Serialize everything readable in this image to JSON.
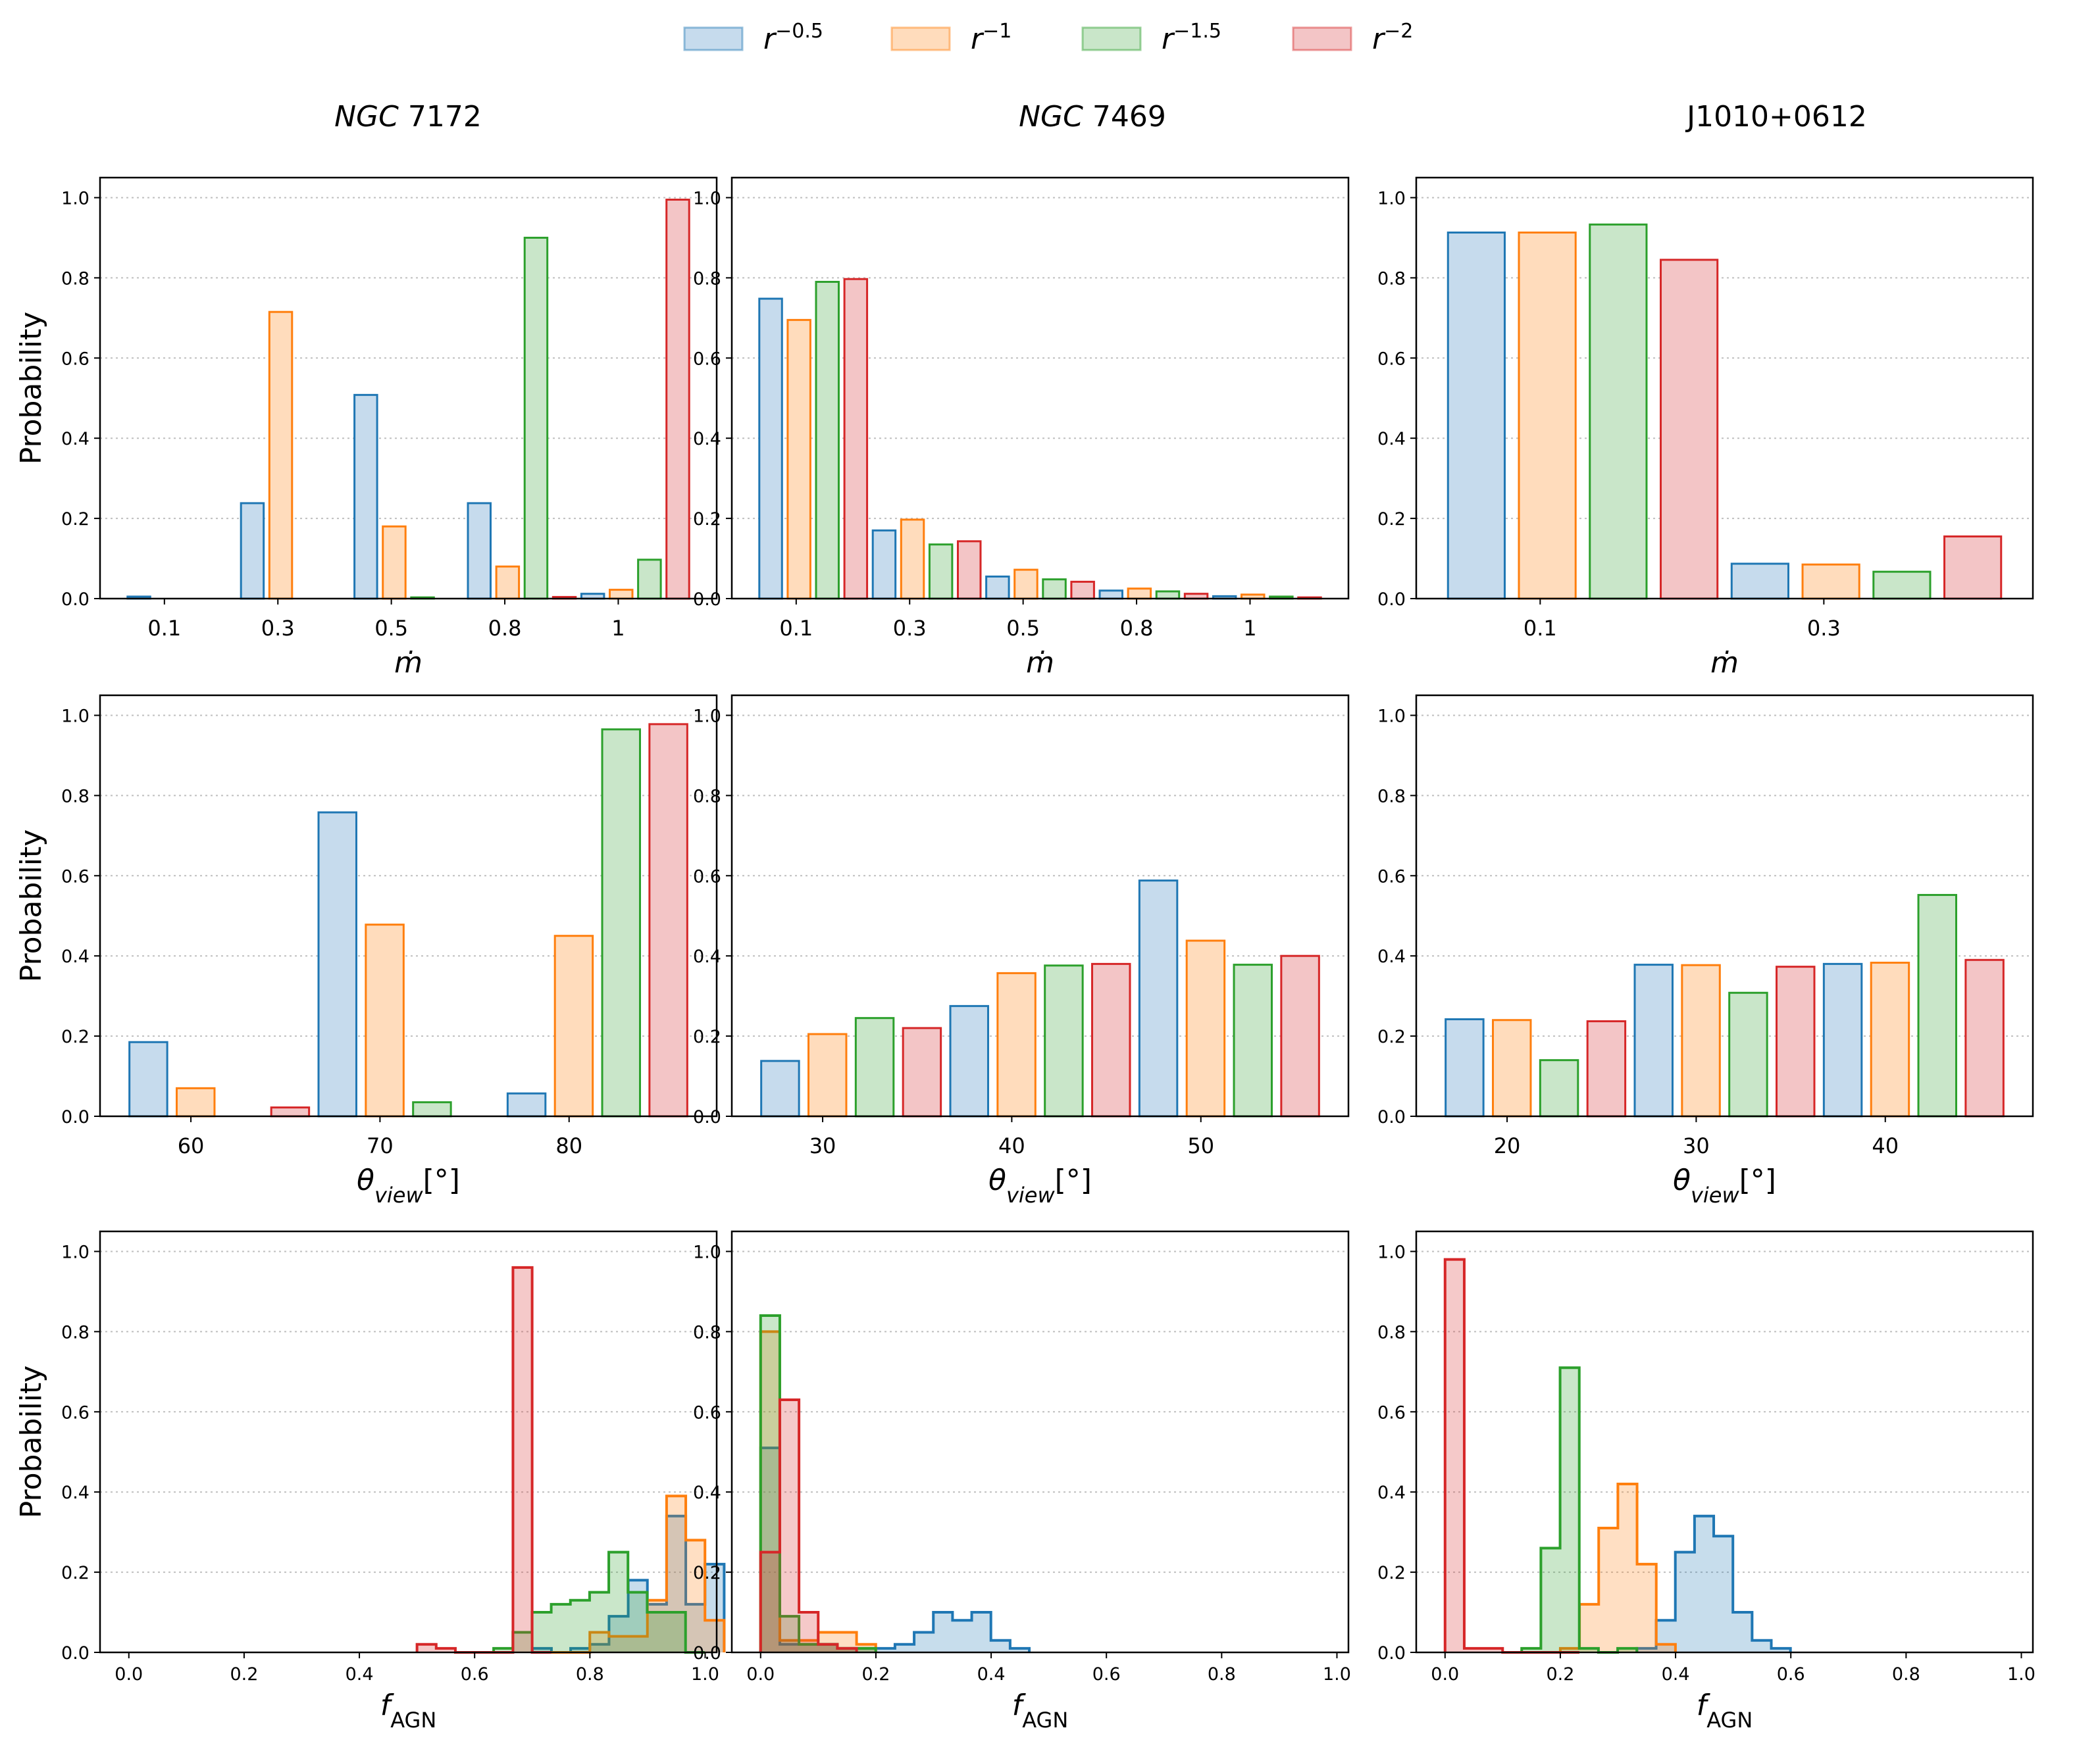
{
  "legend": [
    {
      "base": "r",
      "exp": "−0.5",
      "color": "#1f77b4",
      "fill": "#c6dbed"
    },
    {
      "base": "r",
      "exp": "−1",
      "color": "#ff7f0e",
      "fill": "#ffdcbc"
    },
    {
      "base": "r",
      "exp": "−1.5",
      "color": "#2ca02c",
      "fill": "#c9e6c9"
    },
    {
      "base": "r",
      "exp": "−2",
      "color": "#d62728",
      "fill": "#f3c5c6"
    }
  ],
  "columns": [
    {
      "title_italic": "NGC",
      "title_num": " 7172"
    },
    {
      "title_italic": "NGC",
      "title_num": " 7469"
    },
    {
      "title_italic": "",
      "title_num": "J1010+0612"
    }
  ],
  "axis_labels": {
    "ylabel": "Probability",
    "mdot": "ṁ",
    "theta_main": "θ",
    "theta_sub": "view",
    "theta_unit": "[°]",
    "fagn_main": "f",
    "fagn_sub": "AGN"
  },
  "chart_data": [
    {
      "type": "bar",
      "panel": "mdot-ngc7172",
      "categories": [
        "0.1",
        "0.3",
        "0.5",
        "0.8",
        "1"
      ],
      "ylim": [
        0,
        1.05
      ],
      "yticks": [
        "0.0",
        "0.2",
        "0.4",
        "0.6",
        "0.8",
        "1.0"
      ],
      "series": [
        {
          "name": "r^-0.5",
          "values": [
            0.005,
            0.238,
            0.508,
            0.238,
            0.012
          ]
        },
        {
          "name": "r^-1",
          "values": [
            0.0,
            0.715,
            0.18,
            0.08,
            0.022
          ]
        },
        {
          "name": "r^-1.5",
          "values": [
            0.0,
            0.0,
            0.003,
            0.9,
            0.097
          ]
        },
        {
          "name": "r^-2",
          "values": [
            0.0,
            0.0,
            0.0,
            0.004,
            0.995
          ]
        }
      ]
    },
    {
      "type": "bar",
      "panel": "mdot-ngc7469",
      "categories": [
        "0.1",
        "0.3",
        "0.5",
        "0.8",
        "1"
      ],
      "ylim": [
        0,
        1.05
      ],
      "yticks": [
        "0.0",
        "0.2",
        "0.4",
        "0.6",
        "0.8",
        "1.0"
      ],
      "series": [
        {
          "name": "r^-0.5",
          "values": [
            0.748,
            0.17,
            0.055,
            0.02,
            0.006
          ]
        },
        {
          "name": "r^-1",
          "values": [
            0.695,
            0.197,
            0.072,
            0.025,
            0.01
          ]
        },
        {
          "name": "r^-1.5",
          "values": [
            0.79,
            0.135,
            0.048,
            0.018,
            0.005
          ]
        },
        {
          "name": "r^-2",
          "values": [
            0.797,
            0.143,
            0.042,
            0.012,
            0.003
          ]
        }
      ]
    },
    {
      "type": "bar",
      "panel": "mdot-j1010",
      "categories": [
        "0.1",
        "0.3"
      ],
      "ylim": [
        0,
        1.05
      ],
      "yticks": [
        "0.0",
        "0.2",
        "0.4",
        "0.6",
        "0.8",
        "1.0"
      ],
      "series": [
        {
          "name": "r^-0.5",
          "values": [
            0.913,
            0.087
          ]
        },
        {
          "name": "r^-1",
          "values": [
            0.913,
            0.085
          ]
        },
        {
          "name": "r^-1.5",
          "values": [
            0.933,
            0.067
          ]
        },
        {
          "name": "r^-2",
          "values": [
            0.845,
            0.155
          ]
        }
      ]
    },
    {
      "type": "bar",
      "panel": "theta-ngc7172",
      "categories": [
        "60",
        "70",
        "80"
      ],
      "ylim": [
        0,
        1.05
      ],
      "yticks": [
        "0.0",
        "0.2",
        "0.4",
        "0.6",
        "0.8",
        "1.0"
      ],
      "series": [
        {
          "name": "r^-0.5",
          "values": [
            0.185,
            0.758,
            0.057
          ]
        },
        {
          "name": "r^-1",
          "values": [
            0.07,
            0.478,
            0.45
          ]
        },
        {
          "name": "r^-1.5",
          "values": [
            0.0,
            0.035,
            0.965
          ]
        },
        {
          "name": "r^-2",
          "values": [
            0.022,
            0.0,
            0.978
          ]
        }
      ]
    },
    {
      "type": "bar",
      "panel": "theta-ngc7469",
      "categories": [
        "30",
        "40",
        "50"
      ],
      "ylim": [
        0,
        1.05
      ],
      "yticks": [
        "0.0",
        "0.2",
        "0.4",
        "0.6",
        "0.8",
        "1.0"
      ],
      "series": [
        {
          "name": "r^-0.5",
          "values": [
            0.138,
            0.275,
            0.588
          ]
        },
        {
          "name": "r^-1",
          "values": [
            0.205,
            0.357,
            0.438
          ]
        },
        {
          "name": "r^-1.5",
          "values": [
            0.245,
            0.376,
            0.378
          ]
        },
        {
          "name": "r^-2",
          "values": [
            0.22,
            0.38,
            0.4
          ]
        }
      ]
    },
    {
      "type": "bar",
      "panel": "theta-j1010",
      "categories": [
        "20",
        "30",
        "40"
      ],
      "ylim": [
        0,
        1.05
      ],
      "yticks": [
        "0.0",
        "0.2",
        "0.4",
        "0.6",
        "0.8",
        "1.0"
      ],
      "series": [
        {
          "name": "r^-0.5",
          "values": [
            0.242,
            0.378,
            0.38
          ]
        },
        {
          "name": "r^-1",
          "values": [
            0.24,
            0.377,
            0.383
          ]
        },
        {
          "name": "r^-1.5",
          "values": [
            0.14,
            0.308,
            0.552
          ]
        },
        {
          "name": "r^-2",
          "values": [
            0.237,
            0.373,
            0.39
          ]
        }
      ]
    },
    {
      "type": "area",
      "panel": "fagn-ngc7172",
      "bin_width": 0.0333,
      "xlim": [
        -0.05,
        1.02
      ],
      "ylim": [
        0,
        1.05
      ],
      "xticks": [
        "0.0",
        "0.2",
        "0.4",
        "0.6",
        "0.8",
        "1.0"
      ],
      "yticks": [
        "0.0",
        "0.2",
        "0.4",
        "0.6",
        "0.8",
        "1.0"
      ],
      "series": [
        {
          "name": "r^-0.5",
          "start": 0.7,
          "values": [
            0.01,
            0.0,
            0.01,
            0.02,
            0.09,
            0.18,
            0.12,
            0.34,
            0.12,
            0.22
          ]
        },
        {
          "name": "r^-1",
          "start": 0.7,
          "values": [
            0.0,
            0.0,
            0.0,
            0.05,
            0.04,
            0.04,
            0.13,
            0.39,
            0.28,
            0.08
          ]
        },
        {
          "name": "r^-1.5",
          "start": 0.633,
          "values": [
            0.01,
            0.05,
            0.1,
            0.12,
            0.13,
            0.15,
            0.25,
            0.15,
            0.1,
            0.1,
            0.0
          ]
        },
        {
          "name": "r^-2",
          "start": 0.5,
          "values": [
            0.02,
            0.01,
            0.0,
            0.0,
            0.0,
            0.96,
            0.0
          ]
        }
      ]
    },
    {
      "type": "area",
      "panel": "fagn-ngc7469",
      "bin_width": 0.0333,
      "xlim": [
        -0.05,
        1.02
      ],
      "ylim": [
        0,
        1.05
      ],
      "xticks": [
        "0.0",
        "0.2",
        "0.4",
        "0.6",
        "0.8",
        "1.0"
      ],
      "yticks": [
        "0.0",
        "0.2",
        "0.4",
        "0.6",
        "0.8",
        "1.0"
      ],
      "series": [
        {
          "name": "r^-0.5",
          "start": 0.0,
          "values": [
            0.51,
            0.02,
            0.02,
            0.02,
            0.01,
            0.01,
            0.01,
            0.02,
            0.05,
            0.1,
            0.08,
            0.1,
            0.03,
            0.01
          ]
        },
        {
          "name": "r^-1",
          "start": 0.0,
          "values": [
            0.8,
            0.03,
            0.03,
            0.05,
            0.05,
            0.02
          ]
        },
        {
          "name": "r^-1.5",
          "start": 0.0,
          "values": [
            0.84,
            0.09,
            0.02,
            0.02,
            0.01,
            0.01
          ]
        },
        {
          "name": "r^-2",
          "start": 0.0,
          "values": [
            0.25,
            0.63,
            0.1,
            0.02,
            0.01
          ]
        }
      ]
    },
    {
      "type": "area",
      "panel": "fagn-j1010",
      "bin_width": 0.0333,
      "xlim": [
        -0.05,
        1.02
      ],
      "ylim": [
        0,
        1.05
      ],
      "xticks": [
        "0.0",
        "0.2",
        "0.4",
        "0.6",
        "0.8",
        "1.0"
      ],
      "yticks": [
        "0.0",
        "0.2",
        "0.4",
        "0.6",
        "0.8",
        "1.0"
      ],
      "series": [
        {
          "name": "r^-0.5",
          "start": 0.333,
          "values": [
            0.01,
            0.08,
            0.25,
            0.34,
            0.29,
            0.1,
            0.03,
            0.01
          ]
        },
        {
          "name": "r^-1",
          "start": 0.2,
          "values": [
            0.01,
            0.12,
            0.31,
            0.42,
            0.22,
            0.02
          ]
        },
        {
          "name": "r^-1.5",
          "start": 0.133,
          "values": [
            0.01,
            0.26,
            0.71,
            0.01,
            0.0,
            0.01
          ]
        },
        {
          "name": "r^-2",
          "start": 0.0,
          "values": [
            0.98,
            0.01,
            0.01,
            0.0,
            0.0,
            0.0,
            0.0
          ]
        }
      ]
    }
  ]
}
